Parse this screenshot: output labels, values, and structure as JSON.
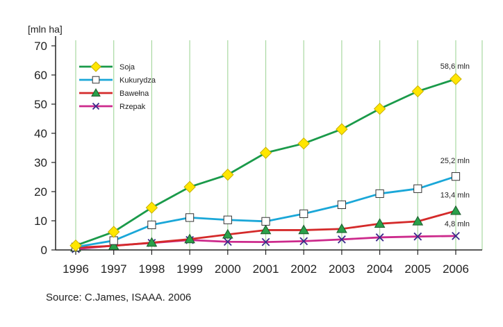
{
  "chart_data": {
    "type": "line",
    "ylabel": "[mln ha]",
    "ylim": [
      0,
      70
    ],
    "yticks": [
      0,
      10,
      20,
      30,
      40,
      50,
      60,
      70
    ],
    "x": [
      1996,
      1997,
      1998,
      1999,
      2000,
      2001,
      2002,
      2003,
      2004,
      2005,
      2006
    ],
    "grid": "vertical",
    "legend_position": "top-left",
    "series": [
      {
        "name": "Soja",
        "color": "#1a9a4a",
        "marker": "diamond",
        "marker_color": "#ffe600",
        "values": [
          1.5,
          6.2,
          14.5,
          21.6,
          25.8,
          33.3,
          36.5,
          41.4,
          48.4,
          54.4,
          58.6
        ]
      },
      {
        "name": "Kukurydza",
        "color": "#1aa7d8",
        "marker": "square",
        "marker_color": "#ffffff",
        "values": [
          1.0,
          3.2,
          8.6,
          11.1,
          10.3,
          9.8,
          12.4,
          15.5,
          19.3,
          21.0,
          25.2
        ]
      },
      {
        "name": "Bawełna",
        "color": "#d42a2a",
        "marker": "triangle",
        "marker_color": "#2aa04a",
        "values": [
          0.8,
          1.4,
          2.5,
          3.7,
          5.3,
          6.8,
          6.8,
          7.2,
          9.0,
          9.8,
          13.4
        ]
      },
      {
        "name": "Rzepak",
        "color": "#cc2a8c",
        "marker": "x",
        "marker_color": "#3a2a8a",
        "values": [
          0.3,
          1.5,
          2.4,
          3.4,
          2.8,
          2.7,
          3.0,
          3.6,
          4.3,
          4.6,
          4.8
        ]
      }
    ],
    "annotations": [
      {
        "text": "58,6 mln",
        "series": 0
      },
      {
        "text": "25,2 mln",
        "series": 1
      },
      {
        "text": "13,4 mln",
        "series": 2
      },
      {
        "text": "4,8 mln",
        "series": 3
      }
    ]
  },
  "source": "Source: C.James, ISAAA. 2006"
}
